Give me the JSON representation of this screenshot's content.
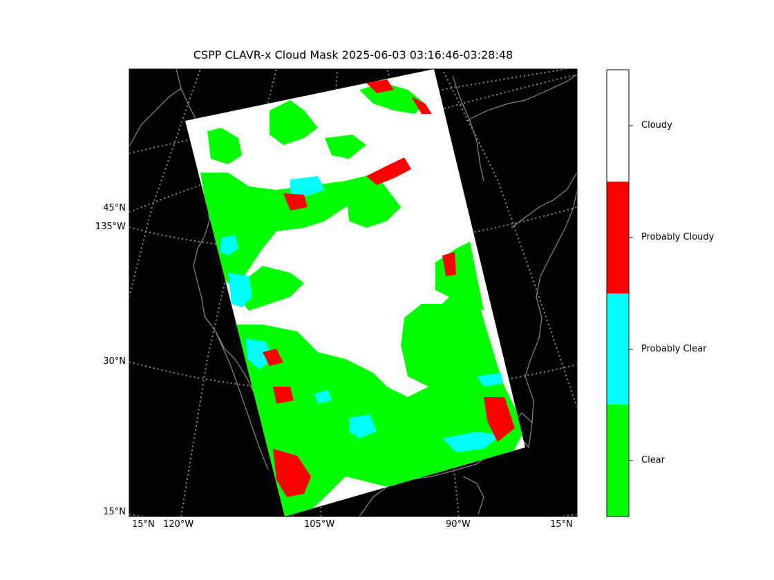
{
  "title": "CSPP CLAVR-x Cloud Mask 2025-06-03 03:16:46-03:28:48",
  "colors": {
    "background": "#000000",
    "clear": "#00ff00",
    "probably_clear": "#00ffff",
    "probably_cloudy": "#ff0000",
    "cloudy": "#ffffff",
    "coastline": "#8a8a8a",
    "graticule": "#8f8f8f"
  },
  "map": {
    "left_labels": [
      "45°N",
      "135°W",
      "30°N",
      "15°N"
    ],
    "bottom_labels": [
      "15°N",
      "120°W",
      "105°W",
      "90°W",
      "15°N"
    ]
  },
  "legend": {
    "categories": [
      "Cloudy",
      "Probably Cloudy",
      "Probably Clear",
      "Clear"
    ]
  }
}
